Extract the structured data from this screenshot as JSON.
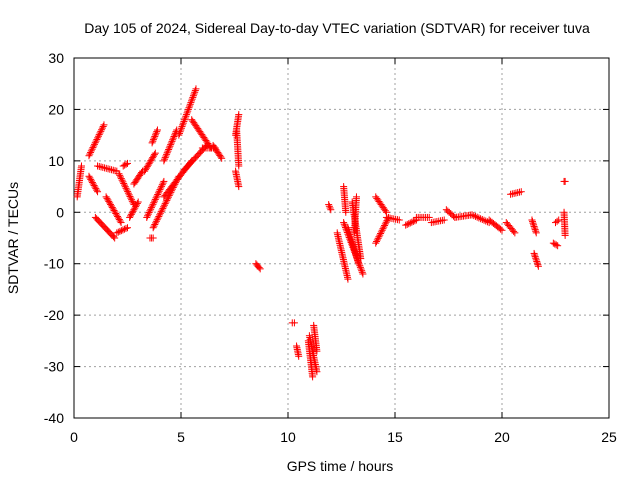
{
  "chart_data": {
    "type": "scatter",
    "title": "Day 105 of 2024, Sidereal Day-to-day VTEC variation (SDTVAR) for receiver tuva",
    "xlabel": "GPS time / hours",
    "ylabel": "SDTVAR / TECUs",
    "xlim": [
      0,
      25
    ],
    "ylim": [
      -40,
      30
    ],
    "xticks": [
      "0",
      "5",
      "10",
      "15",
      "20",
      "25"
    ],
    "yticks": [
      "-40",
      "-30",
      "-20",
      "-10",
      "0",
      "10",
      "20",
      "30"
    ],
    "grid": true,
    "marker": "plus",
    "color": "#ff0000",
    "segments": [
      {
        "x": [
          0.15,
          0.35
        ],
        "y": [
          3,
          9
        ]
      },
      {
        "x": [
          0.7,
          1.4
        ],
        "y": [
          11,
          17
        ]
      },
      {
        "x": [
          0.7,
          1.1
        ],
        "y": [
          7,
          4
        ]
      },
      {
        "x": [
          1.0,
          1.9
        ],
        "y": [
          -1,
          -5
        ]
      },
      {
        "x": [
          1.1,
          2.0
        ],
        "y": [
          9,
          8
        ]
      },
      {
        "x": [
          1.5,
          2.2
        ],
        "y": [
          3,
          -2
        ]
      },
      {
        "x": [
          2.0,
          2.5
        ],
        "y": [
          -4,
          -3
        ]
      },
      {
        "x": [
          2.1,
          2.8
        ],
        "y": [
          7.5,
          1.5
        ]
      },
      {
        "x": [
          2.3,
          2.5
        ],
        "y": [
          9,
          9.5
        ]
      },
      {
        "x": [
          2.6,
          3.0
        ],
        "y": [
          -1,
          2
        ]
      },
      {
        "x": [
          2.8,
          3.2
        ],
        "y": [
          5.5,
          8
        ]
      },
      {
        "x": [
          3.3,
          3.8
        ],
        "y": [
          8,
          11.5
        ]
      },
      {
        "x": [
          3.4,
          4.2
        ],
        "y": [
          -1,
          6
        ]
      },
      {
        "x": [
          3.55,
          3.7
        ],
        "y": [
          -5,
          -5
        ]
      },
      {
        "x": [
          3.65,
          3.9
        ],
        "y": [
          13.5,
          16
        ]
      },
      {
        "x": [
          3.7,
          4.9
        ],
        "y": [
          -3,
          7
        ]
      },
      {
        "x": [
          4.2,
          4.8
        ],
        "y": [
          10,
          16
        ]
      },
      {
        "x": [
          4.9,
          5.7
        ],
        "y": [
          15,
          24
        ]
      },
      {
        "x": [
          4.2,
          5.5
        ],
        "y": [
          3,
          10
        ]
      },
      {
        "x": [
          5.1,
          6.2
        ],
        "y": [
          8,
          13
        ]
      },
      {
        "x": [
          5.5,
          6.4
        ],
        "y": [
          18,
          12.5
        ]
      },
      {
        "x": [
          6.0,
          6.6
        ],
        "y": [
          12.5,
          12.5
        ]
      },
      {
        "x": [
          6.5,
          6.9
        ],
        "y": [
          13,
          10.5
        ]
      },
      {
        "x": [
          7.55,
          7.7
        ],
        "y": [
          15,
          19
        ]
      },
      {
        "x": [
          7.6,
          7.7
        ],
        "y": [
          16,
          9
        ]
      },
      {
        "x": [
          7.55,
          7.7
        ],
        "y": [
          8,
          5
        ]
      },
      {
        "x": [
          8.5,
          8.7
        ],
        "y": [
          -10,
          -11
        ]
      },
      {
        "x": [
          10.2,
          10.3
        ],
        "y": [
          -21.5,
          -21.5
        ]
      },
      {
        "x": [
          10.4,
          10.5
        ],
        "y": [
          -26,
          -28
        ]
      },
      {
        "x": [
          10.95,
          11.15
        ],
        "y": [
          -25,
          -32
        ]
      },
      {
        "x": [
          11.0,
          11.35
        ],
        "y": [
          -24,
          -31
        ]
      },
      {
        "x": [
          11.2,
          11.35
        ],
        "y": [
          -22,
          -27
        ]
      },
      {
        "x": [
          11.9,
          12.0
        ],
        "y": [
          1.5,
          0.5
        ]
      },
      {
        "x": [
          12.3,
          12.8
        ],
        "y": [
          -4,
          -13
        ]
      },
      {
        "x": [
          12.6,
          12.7
        ],
        "y": [
          5,
          0
        ]
      },
      {
        "x": [
          12.6,
          13.5
        ],
        "y": [
          -2,
          -12
        ]
      },
      {
        "x": [
          12.8,
          13.3
        ],
        "y": [
          -3,
          -10
        ]
      },
      {
        "x": [
          13.0,
          13.4
        ],
        "y": [
          2,
          -9
        ]
      },
      {
        "x": [
          13.1,
          13.2
        ],
        "y": [
          -4,
          3
        ]
      },
      {
        "x": [
          14.1,
          14.7
        ],
        "y": [
          -6,
          -1
        ]
      },
      {
        "x": [
          14.1,
          14.6
        ],
        "y": [
          3,
          0
        ]
      },
      {
        "x": [
          14.6,
          15.2
        ],
        "y": [
          -1,
          -1.5
        ]
      },
      {
        "x": [
          15.5,
          16.0
        ],
        "y": [
          -2.5,
          -1.5
        ]
      },
      {
        "x": [
          16.0,
          16.6
        ],
        "y": [
          -1,
          -1
        ]
      },
      {
        "x": [
          16.7,
          17.3
        ],
        "y": [
          -2,
          -1.5
        ]
      },
      {
        "x": [
          17.4,
          17.8
        ],
        "y": [
          0.5,
          -1
        ]
      },
      {
        "x": [
          17.8,
          18.6
        ],
        "y": [
          -1,
          -0.5
        ]
      },
      {
        "x": [
          18.6,
          19.4
        ],
        "y": [
          -0.5,
          -2
        ]
      },
      {
        "x": [
          19.4,
          20.0
        ],
        "y": [
          -1.5,
          -3.5
        ]
      },
      {
        "x": [
          20.2,
          20.6
        ],
        "y": [
          -2,
          -4
        ]
      },
      {
        "x": [
          20.4,
          20.9
        ],
        "y": [
          3.5,
          4
        ]
      },
      {
        "x": [
          21.4,
          21.6
        ],
        "y": [
          -1.5,
          -4
        ]
      },
      {
        "x": [
          21.5,
          21.7
        ],
        "y": [
          -8,
          -10.5
        ]
      },
      {
        "x": [
          22.4,
          22.6
        ],
        "y": [
          -6,
          -6.5
        ]
      },
      {
        "x": [
          22.5,
          22.65
        ],
        "y": [
          -2,
          -1.5
        ]
      },
      {
        "x": [
          22.9,
          22.95
        ],
        "y": [
          6,
          6
        ]
      },
      {
        "x": [
          22.9,
          22.95
        ],
        "y": [
          0,
          -4.5
        ]
      }
    ]
  }
}
